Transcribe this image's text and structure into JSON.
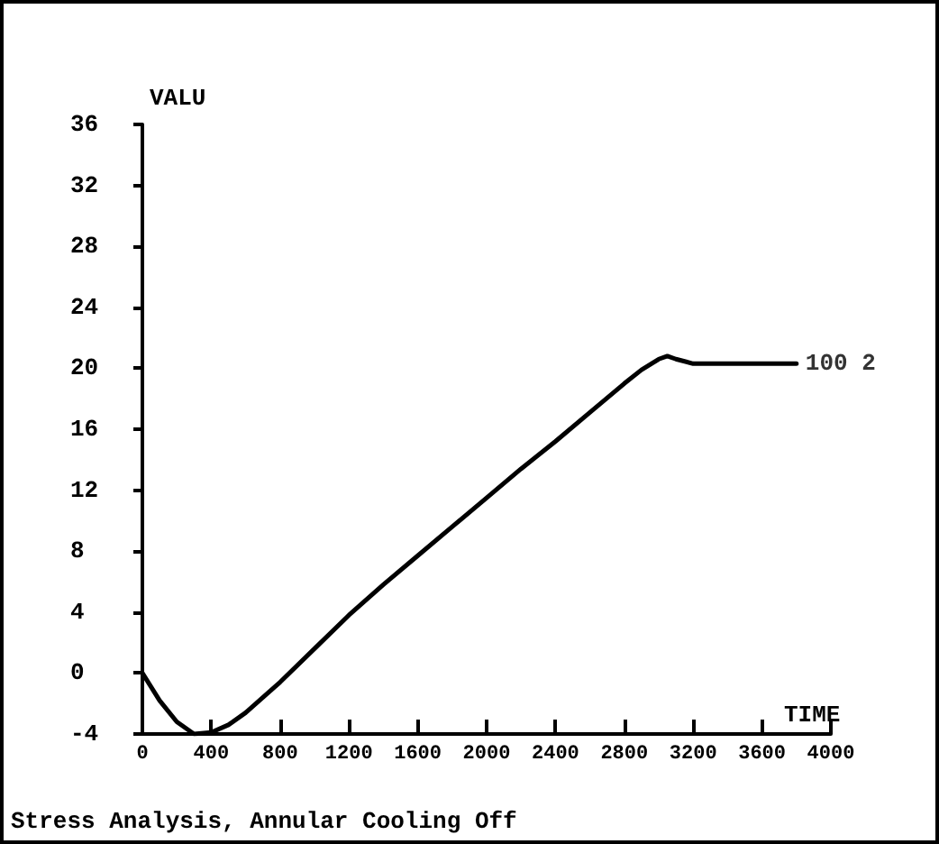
{
  "chart_data": {
    "type": "line",
    "xlabel": "TIME",
    "ylabel": "VALU",
    "annotations": [
      "Stress Analysis, Annular Cooling Off",
      {
        "text": "100 2",
        "x": 3800,
        "y": 20.3
      }
    ],
    "series": [
      {
        "color": "#000000",
        "x": [
          0,
          100,
          200,
          300,
          400,
          500,
          600,
          800,
          1000,
          1200,
          1400,
          1600,
          1800,
          2000,
          2200,
          2400,
          2600,
          2800,
          2900,
          3000,
          3050,
          3100,
          3200,
          3400,
          3600,
          3800
        ],
        "values": [
          0,
          -1.8,
          -3.2,
          -4,
          -3.9,
          -3.4,
          -2.6,
          -0.6,
          1.6,
          3.8,
          5.8,
          7.7,
          9.6,
          11.5,
          13.4,
          15.2,
          17.1,
          19,
          19.9,
          20.6,
          20.8,
          20.6,
          20.3,
          20.3,
          20.3,
          20.3
        ]
      }
    ],
    "xlim": [
      0,
      4000
    ],
    "xticks": [
      0,
      400,
      800,
      1200,
      1600,
      2000,
      2400,
      2800,
      3200,
      3600,
      4000
    ],
    "ylim": [
      -4,
      36
    ],
    "yticks": [
      -4,
      0,
      4,
      8,
      12,
      16,
      20,
      24,
      28,
      32,
      36
    ],
    "grid": false,
    "marker": "none",
    "line_style": "solid"
  }
}
